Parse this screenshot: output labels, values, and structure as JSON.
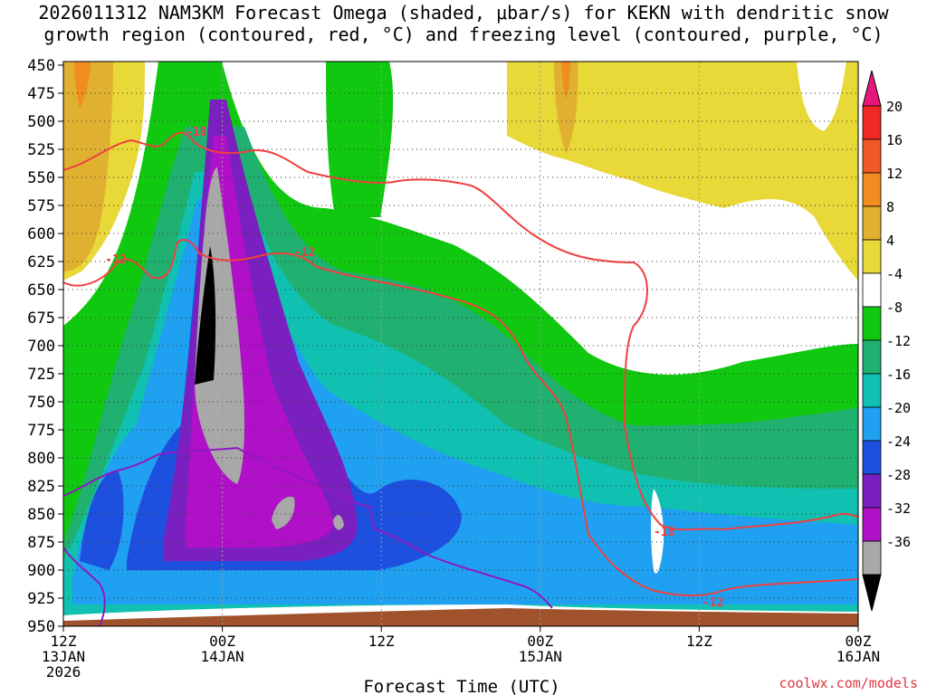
{
  "title": {
    "line1": "2026011312 NAM3KM Forecast Omega (shaded, μbar/s) for KEKN with dendritic snow",
    "line2": "growth region (contoured, red, °C) and freezing level (contoured, purple, °C)"
  },
  "credit": "coolwx.com/models",
  "chart_data": {
    "type": "heatmap",
    "xlabel": "Forecast Time (UTC)",
    "ylabel": "",
    "x_range_hours": [
      0,
      60
    ],
    "y_range_mb": [
      450,
      950
    ],
    "y_ticks": [
      450,
      475,
      500,
      525,
      550,
      575,
      600,
      625,
      650,
      675,
      700,
      725,
      750,
      775,
      800,
      825,
      850,
      875,
      900,
      925,
      950
    ],
    "x_ticks": [
      {
        "hour": 0,
        "line1": "12Z",
        "line2": "13JAN",
        "line3": "2026"
      },
      {
        "hour": 12,
        "line1": "00Z",
        "line2": "14JAN",
        "line3": ""
      },
      {
        "hour": 24,
        "line1": "12Z",
        "line2": "",
        "line3": ""
      },
      {
        "hour": 36,
        "line1": "00Z",
        "line2": "15JAN",
        "line3": ""
      },
      {
        "hour": 48,
        "line1": "12Z",
        "line2": "",
        "line3": ""
      },
      {
        "hour": 60,
        "line1": "00Z",
        "line2": "16JAN",
        "line3": ""
      }
    ],
    "colorbar": {
      "labels": [
        20,
        16,
        12,
        8,
        4,
        -4,
        -8,
        -12,
        -16,
        -20,
        -24,
        -28,
        -32,
        -36
      ],
      "colors": [
        "#e8187a",
        "#f02828",
        "#f05a28",
        "#f08c20",
        "#e0b030",
        "#e8d838",
        "#ffffff",
        "#10c810",
        "#20b070",
        "#10c0b0",
        "#20a0f0",
        "#1e50e0",
        "#7a20c0",
        "#b010c8",
        "#a8a8a8",
        "#000000"
      ]
    },
    "contour_labels": [
      {
        "text": "-18",
        "color": "#f04040"
      },
      {
        "text": "-12",
        "color": "#f04040"
      },
      {
        "text": "-12",
        "color": "#f04040"
      },
      {
        "text": "-18",
        "color": "#f04040"
      },
      {
        "text": "-12",
        "color": "#f04040"
      }
    ],
    "grid": true
  }
}
